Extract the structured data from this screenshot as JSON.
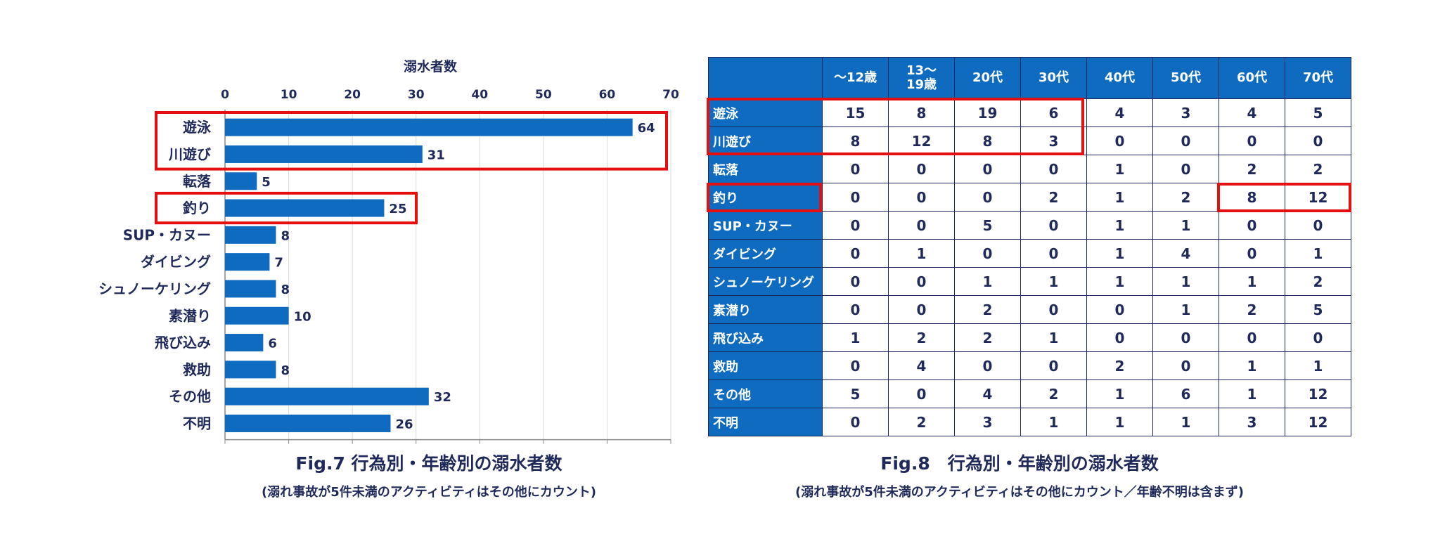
{
  "fig7": {
    "caption": "Fig.7 行為別・年齢別の溺水者数",
    "note": "(溺れ事故が5件未満のアクティビティはその他にカウント)",
    "chart_data": {
      "type": "bar",
      "orientation": "horizontal",
      "xlabel": "溺水者数",
      "xlim": [
        0,
        70
      ],
      "ticks": [
        0,
        10,
        20,
        30,
        40,
        50,
        60,
        70
      ],
      "grid": true,
      "categories": [
        "遊泳",
        "川遊び",
        "転落",
        "釣り",
        "SUP・カヌー",
        "ダイビング",
        "シュノーケリング",
        "素潜り",
        "飛び込み",
        "救助",
        "その他",
        "不明"
      ],
      "values": [
        64,
        31,
        5,
        25,
        8,
        7,
        8,
        10,
        6,
        8,
        32,
        26
      ],
      "bar_color": "#0e6bc0",
      "highlight_color": "#e60f0f",
      "highlighted_categories": [
        "遊泳",
        "川遊び",
        "釣り"
      ]
    }
  },
  "fig8": {
    "caption": "Fig.8　行為別・年齢別の溺水者数",
    "note": "(溺れ事故が5件未満のアクティビティはその他にカウント／年齢不明は含まず)",
    "header_color": "#0e6bc0",
    "highlight_color": "#e60f0f",
    "chart_data": {
      "type": "table",
      "columns": [
        "〜12歳",
        "13〜\n19歳",
        "20代",
        "30代",
        "40代",
        "50代",
        "60代",
        "70代"
      ],
      "rows": [
        {
          "label": "遊泳",
          "values": [
            15,
            8,
            19,
            6,
            4,
            3,
            4,
            5
          ]
        },
        {
          "label": "川遊び",
          "values": [
            8,
            12,
            8,
            3,
            0,
            0,
            0,
            0
          ]
        },
        {
          "label": "転落",
          "values": [
            0,
            0,
            0,
            0,
            1,
            0,
            2,
            2
          ]
        },
        {
          "label": "釣り",
          "values": [
            0,
            0,
            0,
            2,
            1,
            2,
            8,
            12
          ]
        },
        {
          "label": "SUP・カヌー",
          "values": [
            0,
            0,
            5,
            0,
            1,
            1,
            0,
            0
          ]
        },
        {
          "label": "ダイビング",
          "values": [
            0,
            1,
            0,
            0,
            1,
            4,
            0,
            1
          ]
        },
        {
          "label": "シュノーケリング",
          "values": [
            0,
            0,
            1,
            1,
            1,
            1,
            1,
            2
          ]
        },
        {
          "label": "素潜り",
          "values": [
            0,
            0,
            2,
            0,
            0,
            1,
            2,
            5
          ]
        },
        {
          "label": "飛び込み",
          "values": [
            1,
            2,
            2,
            1,
            0,
            0,
            0,
            0
          ]
        },
        {
          "label": "救助",
          "values": [
            0,
            4,
            0,
            0,
            2,
            0,
            1,
            1
          ]
        },
        {
          "label": "その他",
          "values": [
            5,
            0,
            4,
            2,
            1,
            6,
            1,
            12
          ]
        },
        {
          "label": "不明",
          "values": [
            0,
            2,
            3,
            1,
            1,
            1,
            3,
            12
          ]
        }
      ]
    }
  }
}
